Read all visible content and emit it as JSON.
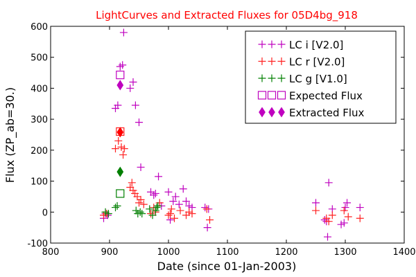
{
  "chart_data": {
    "type": "scatter",
    "title": "LightCurves and Extracted Fluxes for 05D4bg_918",
    "title_color": "#ff0000",
    "xlabel": "Date (since 01-Jan-2003)",
    "ylabel": "Flux (ZP_ab=30.)",
    "xlim": [
      800,
      1400
    ],
    "ylim": [
      -100,
      600
    ],
    "xticks": [
      800,
      900,
      1000,
      1100,
      1200,
      1300,
      1400
    ],
    "yticks": [
      -100,
      0,
      100,
      200,
      300,
      400,
      500,
      600
    ],
    "legend_position": "top-right",
    "series": [
      {
        "name": "LC i [V2.0]",
        "color": "#bf00bf",
        "marker": "plus",
        "points": [
          [
            890,
            -20
          ],
          [
            893,
            -5
          ],
          [
            897,
            -10
          ],
          [
            910,
            335
          ],
          [
            914,
            345
          ],
          [
            918,
            470
          ],
          [
            922,
            475
          ],
          [
            924,
            580
          ],
          [
            935,
            400
          ],
          [
            940,
            420
          ],
          [
            944,
            345
          ],
          [
            950,
            290
          ],
          [
            953,
            145
          ],
          [
            970,
            65
          ],
          [
            975,
            55
          ],
          [
            978,
            60
          ],
          [
            983,
            115
          ],
          [
            988,
            20
          ],
          [
            1000,
            65
          ],
          [
            1003,
            -25
          ],
          [
            1008,
            35
          ],
          [
            1012,
            50
          ],
          [
            1018,
            25
          ],
          [
            1025,
            75
          ],
          [
            1030,
            35
          ],
          [
            1035,
            20
          ],
          [
            1040,
            15
          ],
          [
            1062,
            15
          ],
          [
            1066,
            -50
          ],
          [
            1068,
            10
          ],
          [
            1250,
            30
          ],
          [
            1265,
            -25
          ],
          [
            1268,
            -30
          ],
          [
            1270,
            -80
          ],
          [
            1272,
            95
          ],
          [
            1278,
            10
          ],
          [
            1293,
            -40
          ],
          [
            1298,
            -35
          ],
          [
            1300,
            15
          ],
          [
            1303,
            30
          ],
          [
            1325,
            15
          ]
        ]
      },
      {
        "name": "LC r [V2.0]",
        "color": "#ff2020",
        "marker": "plus",
        "points": [
          [
            890,
            -10
          ],
          [
            895,
            -5
          ],
          [
            910,
            205
          ],
          [
            915,
            230
          ],
          [
            920,
            210
          ],
          [
            923,
            185
          ],
          [
            925,
            205
          ],
          [
            935,
            80
          ],
          [
            938,
            95
          ],
          [
            940,
            70
          ],
          [
            943,
            60
          ],
          [
            947,
            50
          ],
          [
            950,
            30
          ],
          [
            953,
            40
          ],
          [
            958,
            25
          ],
          [
            970,
            -5
          ],
          [
            975,
            15
          ],
          [
            978,
            0
          ],
          [
            985,
            30
          ],
          [
            1000,
            -10
          ],
          [
            1003,
            -5
          ],
          [
            1005,
            10
          ],
          [
            1010,
            -20
          ],
          [
            1020,
            5
          ],
          [
            1030,
            -10
          ],
          [
            1035,
            0
          ],
          [
            1040,
            -5
          ],
          [
            1065,
            10
          ],
          [
            1070,
            -25
          ],
          [
            1250,
            5
          ],
          [
            1268,
            -20
          ],
          [
            1272,
            -30
          ],
          [
            1278,
            -10
          ],
          [
            1298,
            5
          ],
          [
            1305,
            -15
          ],
          [
            1325,
            -20
          ]
        ]
      },
      {
        "name": "LC g [V1.0]",
        "color": "#007f00",
        "marker": "plus",
        "points": [
          [
            893,
            0
          ],
          [
            898,
            -5
          ],
          [
            910,
            15
          ],
          [
            913,
            20
          ],
          [
            945,
            5
          ],
          [
            948,
            -5
          ],
          [
            952,
            0
          ],
          [
            955,
            -5
          ],
          [
            968,
            10
          ],
          [
            973,
            -10
          ],
          [
            978,
            5
          ],
          [
            980,
            15
          ],
          [
            982,
            20
          ]
        ]
      },
      {
        "name": "Expected Flux",
        "marker": "square-open",
        "points": [
          {
            "x": 918,
            "y": 443,
            "color": "#bf00bf"
          },
          {
            "x": 918,
            "y": 260,
            "color": "#ff2020"
          },
          {
            "x": 918,
            "y": 60,
            "color": "#007f00"
          }
        ]
      },
      {
        "name": "Extracted Flux",
        "marker": "diamond",
        "points": [
          {
            "x": 918,
            "y": 410,
            "color": "#bf00bf"
          },
          {
            "x": 918,
            "y": 258,
            "color": "#ff0000"
          },
          {
            "x": 918,
            "y": 130,
            "color": "#007f00"
          }
        ]
      }
    ],
    "legend": [
      {
        "label": "LC i [V2.0]",
        "marker": "plus",
        "color": "#bf00bf"
      },
      {
        "label": "LC r [V2.0]",
        "marker": "plus",
        "color": "#ff2020"
      },
      {
        "label": "LC g [V1.0]",
        "marker": "plus",
        "color": "#007f00"
      },
      {
        "label": "Expected Flux",
        "marker": "square-open",
        "color": "#bf00bf"
      },
      {
        "label": "Extracted Flux",
        "marker": "diamond",
        "color": "#bf00bf"
      }
    ]
  }
}
